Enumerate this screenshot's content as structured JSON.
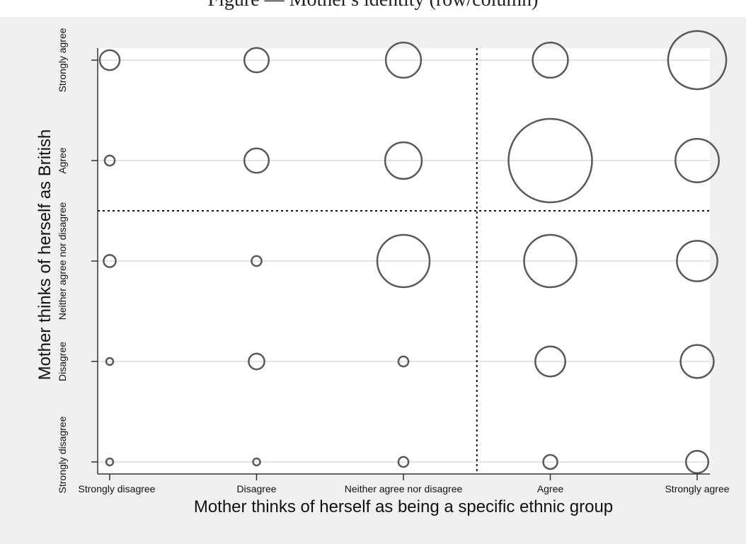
{
  "caption": "Figure — Mother's identity (row/column)",
  "chart_data": {
    "type": "scatter",
    "title": "",
    "xlabel": "Mother thinks of herself as being a specific ethnic group",
    "ylabel": "Mother thinks of herself as British",
    "x_categories": [
      "Strongly disagree",
      "Disagree",
      "Neither agree nor disagree",
      "Agree",
      "Strongly agree"
    ],
    "y_categories": [
      "Strongly disagree",
      "Disagree",
      "Neither agree nor disagree",
      "Agree",
      "Strongly agree"
    ],
    "grid": "horizontal",
    "reference_lines": {
      "x_between": [
        2,
        3
      ],
      "y_between": [
        2,
        3
      ]
    },
    "points": [
      {
        "x": "Strongly disagree",
        "y": "Strongly agree",
        "size": 8
      },
      {
        "x": "Disagree",
        "y": "Strongly agree",
        "size": 12
      },
      {
        "x": "Neither agree nor disagree",
        "y": "Strongly agree",
        "size": 25
      },
      {
        "x": "Agree",
        "y": "Strongly agree",
        "size": 25
      },
      {
        "x": "Strongly agree",
        "y": "Strongly agree",
        "size": 68
      },
      {
        "x": "Strongly disagree",
        "y": "Agree",
        "size": 2
      },
      {
        "x": "Disagree",
        "y": "Agree",
        "size": 12
      },
      {
        "x": "Neither agree nor disagree",
        "y": "Agree",
        "size": 27
      },
      {
        "x": "Agree",
        "y": "Agree",
        "size": 140
      },
      {
        "x": "Strongly agree",
        "y": "Agree",
        "size": 38
      },
      {
        "x": "Strongly disagree",
        "y": "Neither agree nor disagree",
        "size": 3
      },
      {
        "x": "Disagree",
        "y": "Neither agree nor disagree",
        "size": 2
      },
      {
        "x": "Neither agree nor disagree",
        "y": "Neither agree nor disagree",
        "size": 55
      },
      {
        "x": "Agree",
        "y": "Neither agree nor disagree",
        "size": 55
      },
      {
        "x": "Strongly agree",
        "y": "Neither agree nor disagree",
        "size": 33
      },
      {
        "x": "Strongly disagree",
        "y": "Disagree",
        "size": 1
      },
      {
        "x": "Disagree",
        "y": "Disagree",
        "size": 5
      },
      {
        "x": "Neither agree nor disagree",
        "y": "Disagree",
        "size": 2
      },
      {
        "x": "Agree",
        "y": "Disagree",
        "size": 18
      },
      {
        "x": "Strongly agree",
        "y": "Disagree",
        "size": 22
      },
      {
        "x": "Strongly disagree",
        "y": "Strongly disagree",
        "size": 1
      },
      {
        "x": "Disagree",
        "y": "Strongly disagree",
        "size": 1
      },
      {
        "x": "Neither agree nor disagree",
        "y": "Strongly disagree",
        "size": 2
      },
      {
        "x": "Agree",
        "y": "Strongly disagree",
        "size": 4
      },
      {
        "x": "Strongly agree",
        "y": "Strongly disagree",
        "size": 10
      }
    ]
  }
}
